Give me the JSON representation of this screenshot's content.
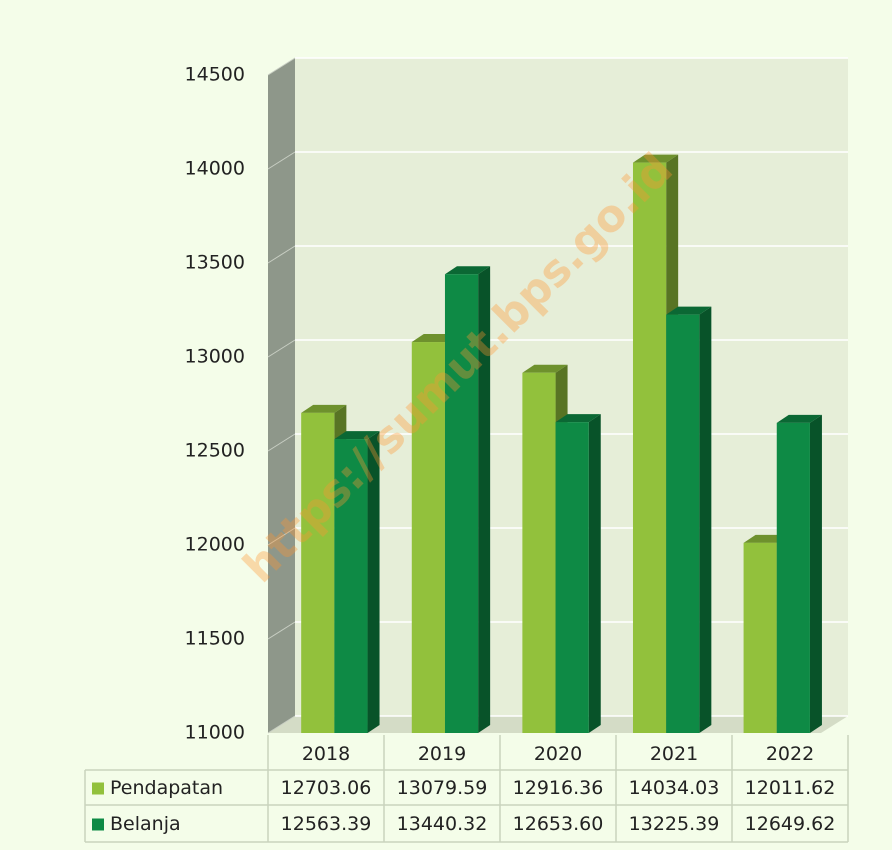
{
  "chart_data": {
    "type": "bar3d",
    "categories": [
      "2018",
      "2019",
      "2020",
      "2021",
      "2022"
    ],
    "series": [
      {
        "name": "Pendapatan",
        "color": "#92c13c",
        "values": [
          12703.06,
          13079.59,
          12916.36,
          14034.03,
          12011.62
        ],
        "value_labels": [
          "12703.06",
          "13079.59",
          "12916.36",
          "14034.03",
          "12011.62"
        ]
      },
      {
        "name": "Belanja",
        "color": "#0e8a45",
        "values": [
          12563.39,
          13440.32,
          12653.6,
          13225.39,
          12649.62
        ],
        "value_labels": [
          "12563.39",
          "13440.32",
          "12653.60",
          "13225.39",
          "12649.62"
        ]
      }
    ],
    "ylim": [
      11000,
      14500
    ],
    "yticks": [
      11000,
      11500,
      12000,
      12500,
      13000,
      13500,
      14000,
      14500
    ],
    "grid": true,
    "data_table": true,
    "annotation": "https://sumut.bps.go.id"
  }
}
